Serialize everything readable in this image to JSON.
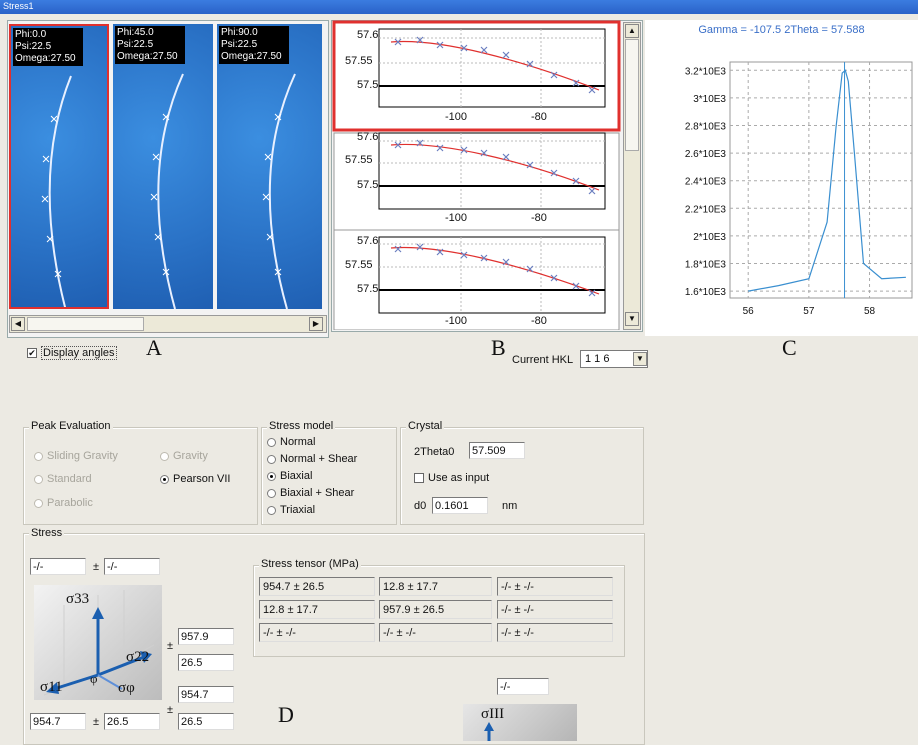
{
  "window": {
    "title": "Stress1"
  },
  "detector": {
    "frames": [
      {
        "phi": "Phi:0.0",
        "psi": "Psi:22.5",
        "omega": "Omega:27.50"
      },
      {
        "phi": "Phi:45.0",
        "psi": "Psi:22.5",
        "omega": "Omega:27.50"
      },
      {
        "phi": "Phi:90.0",
        "psi": "Psi:22.5",
        "omega": "Omega:27.50"
      }
    ],
    "display_angles_label": "Display angles",
    "display_angles_checked": true
  },
  "fits": {
    "y_ticks": [
      "57.6",
      "57.55",
      "57.5"
    ],
    "x_ticks": [
      "-100",
      "-80"
    ]
  },
  "peak": {
    "title": "Gamma = -107.5 2Theta = 57.588",
    "y_ticks": [
      "3.2*10E3",
      "3*10E3",
      "2.8*10E3",
      "2.6*10E3",
      "2.4*10E3",
      "2.2*10E3",
      "2*10E3",
      "1.8*10E3",
      "1.6*10E3"
    ],
    "x_ticks": [
      "56",
      "57",
      "58"
    ],
    "line_color": "#3a8fd0"
  },
  "chart_data": {
    "type": "line",
    "title": "Gamma = -107.5 2Theta = 57.588",
    "xlabel": "",
    "ylabel": "",
    "x": [
      56.0,
      56.5,
      57.0,
      57.3,
      57.45,
      57.55,
      57.6,
      57.65,
      57.75,
      57.9,
      58.2,
      58.6
    ],
    "y": [
      1600,
      1640,
      1690,
      2100,
      2800,
      3180,
      3200,
      3120,
      2600,
      1800,
      1690,
      1700
    ],
    "xlim": [
      55.7,
      58.7
    ],
    "ylim": [
      1550,
      3260
    ],
    "marker_x": 57.588,
    "grid": true,
    "line_color": "#3a8fd0"
  },
  "annotations": {
    "a": "A",
    "b": "B",
    "c": "C",
    "d": "D"
  },
  "hkl": {
    "label": "Current HKL",
    "value": "1 1 6"
  },
  "peak_eval": {
    "title": "Peak Evaluation",
    "options": [
      {
        "label": "Sliding Gravity",
        "enabled": false,
        "selected": false
      },
      {
        "label": "Gravity",
        "enabled": false,
        "selected": false
      },
      {
        "label": "Standard",
        "enabled": false,
        "selected": false
      },
      {
        "label": "Pearson VII",
        "enabled": true,
        "selected": true
      },
      {
        "label": "Parabolic",
        "enabled": false,
        "selected": false
      }
    ]
  },
  "stress_model": {
    "title": "Stress model",
    "options": [
      {
        "label": "Normal",
        "selected": false
      },
      {
        "label": "Normal + Shear",
        "selected": false
      },
      {
        "label": "Biaxial",
        "selected": true
      },
      {
        "label": "Biaxial + Shear",
        "selected": false
      },
      {
        "label": "Triaxial",
        "selected": false
      }
    ]
  },
  "crystal": {
    "title": "Crystal",
    "two_theta_label": "2Theta0",
    "two_theta_value": "57.509",
    "use_as_input_label": "Use as input",
    "d0_label": "d0",
    "d0_value": "0.1601",
    "d0_unit": "nm"
  },
  "stress": {
    "title": "Stress",
    "top_value": "-/-",
    "top_error": "-/-",
    "pm": "±",
    "s22_value": "957.9",
    "s22_error": "26.5",
    "s11_value": "954.7",
    "s11_error": "26.5",
    "bottom_value": "954.7",
    "bottom_error": "26.5",
    "s3_value": "-/-",
    "sym_s33": "σ33",
    "sym_s22": "σ22",
    "sym_s11": "σ11",
    "sym_phi": "φ",
    "sym_sphi": "σφ",
    "sym_siii": "σIII"
  },
  "tensor": {
    "title": "Stress tensor (MPa)",
    "rows": [
      [
        "954.7 ± 26.5",
        "12.8 ± 17.7",
        "-/- ± -/-"
      ],
      [
        "12.8 ± 17.7",
        "957.9 ± 26.5",
        "-/- ± -/-"
      ],
      [
        "-/- ± -/-",
        "-/- ± -/-",
        "-/- ± -/-"
      ]
    ]
  }
}
